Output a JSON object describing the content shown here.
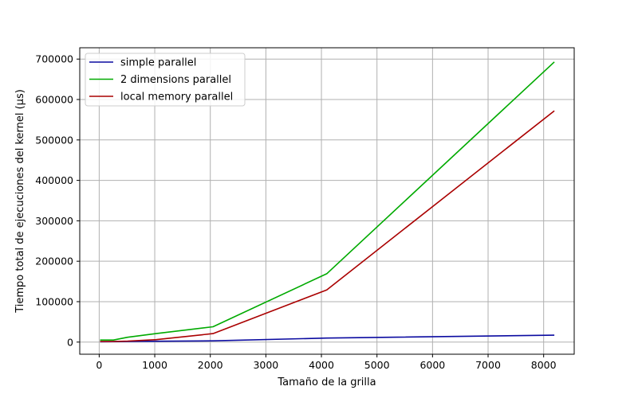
{
  "chart_data": {
    "type": "line",
    "title": "",
    "xlabel": "Tamaño de la grilla",
    "ylabel": "Tiempo total de ejecuciones del kernel (µs)",
    "xlim": [
      -350,
      8550
    ],
    "ylim": [
      -30000,
      728000
    ],
    "x_ticks": [
      0,
      1000,
      2000,
      3000,
      4000,
      5000,
      6000,
      7000,
      8000
    ],
    "y_ticks": [
      0,
      100000,
      200000,
      300000,
      400000,
      500000,
      600000,
      700000
    ],
    "grid": true,
    "legend_position": "upper left",
    "x": [
      16,
      256,
      512,
      1024,
      2048,
      4096,
      8192
    ],
    "series": [
      {
        "name": "simple parallel",
        "color": "#0a0aa0",
        "values": [
          1000,
          1200,
          1500,
          2000,
          3000,
          10000,
          17000
        ]
      },
      {
        "name": "2 dimensions parallel",
        "color": "#00aa00",
        "values": [
          5000,
          5000,
          12000,
          21000,
          38000,
          169000,
          693000
        ]
      },
      {
        "name": "local memory parallel",
        "color": "#aa0000",
        "values": [
          1500,
          1500,
          2500,
          6000,
          21000,
          129000,
          572000
        ]
      }
    ]
  }
}
